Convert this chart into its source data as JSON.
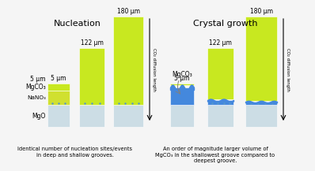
{
  "nucleation_title": "Nucleation",
  "crystal_title": "Crystal growth",
  "mgo_color": "#ccdde5",
  "green_color": "#c8e820",
  "yellow_green_color": "#d0e030",
  "blue_color": "#4488dd",
  "dot_color": "#5599cc",
  "mgco3_label": "MgCO₃",
  "nano3_label": "NaNO₃",
  "mgo_label": "MgO",
  "diffusion_label": "CO₂ diffusion length",
  "nucleation_caption": "Identical number of nucleation sites/events\nin deep and shallow grooves.",
  "crystal_caption": "An order of magnitude larger volume of\nMgCO₃ in the shallowest groove compared to\ndeepest groove.",
  "bg_color": "#f5f5f5",
  "title_fontsize": 8,
  "label_fontsize": 5.5,
  "caption_fontsize": 4.8
}
